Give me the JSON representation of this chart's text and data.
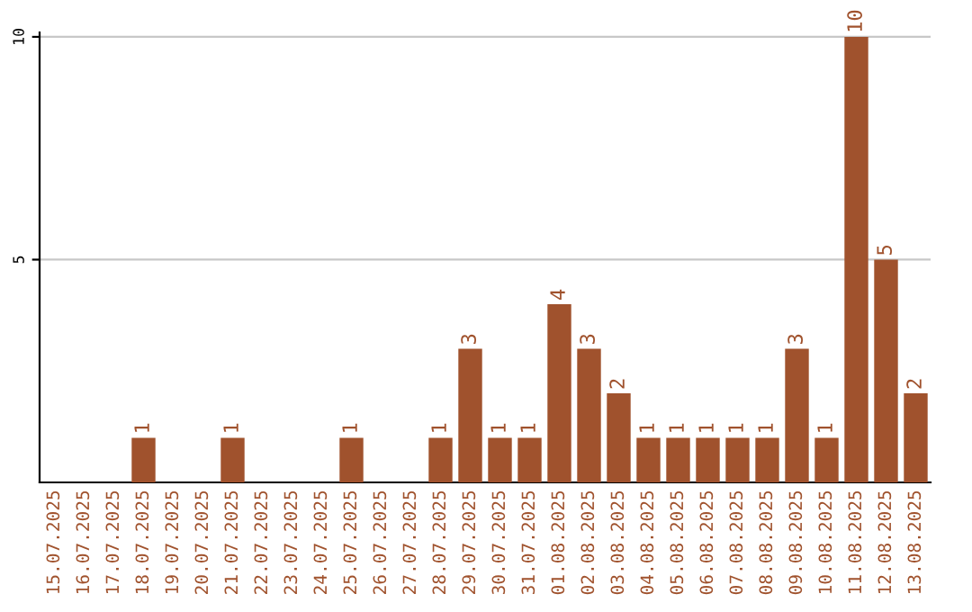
{
  "chart_data": {
    "type": "bar",
    "categories": [
      "15.07.2025",
      "16.07.2025",
      "17.07.2025",
      "18.07.2025",
      "19.07.2025",
      "20.07.2025",
      "21.07.2025",
      "22.07.2025",
      "23.07.2025",
      "24.07.2025",
      "25.07.2025",
      "26.07.2025",
      "27.07.2025",
      "28.07.2025",
      "29.07.2025",
      "30.07.2025",
      "31.07.2025",
      "01.08.2025",
      "02.08.2025",
      "03.08.2025",
      "04.08.2025",
      "05.08.2025",
      "06.08.2025",
      "07.08.2025",
      "08.08.2025",
      "09.08.2025",
      "10.08.2025",
      "11.08.2025",
      "12.08.2025",
      "13.08.2025"
    ],
    "values": [
      0,
      0,
      0,
      1,
      0,
      0,
      1,
      0,
      0,
      0,
      1,
      0,
      0,
      1,
      3,
      1,
      1,
      4,
      3,
      2,
      1,
      1,
      1,
      1,
      1,
      3,
      1,
      10,
      5,
      2
    ],
    "value_labels": [
      null,
      null,
      null,
      "1",
      null,
      null,
      "1",
      null,
      null,
      null,
      "1",
      null,
      null,
      "1",
      "3",
      "1",
      "1",
      "4",
      "3",
      "2",
      "1",
      "1",
      "1",
      "1",
      "1",
      "3",
      "1",
      "10",
      "5",
      "2"
    ],
    "color": "#a0522d",
    "ylim": [
      0,
      10.1
    ],
    "yticks": [
      5,
      10
    ],
    "grid": "y"
  }
}
